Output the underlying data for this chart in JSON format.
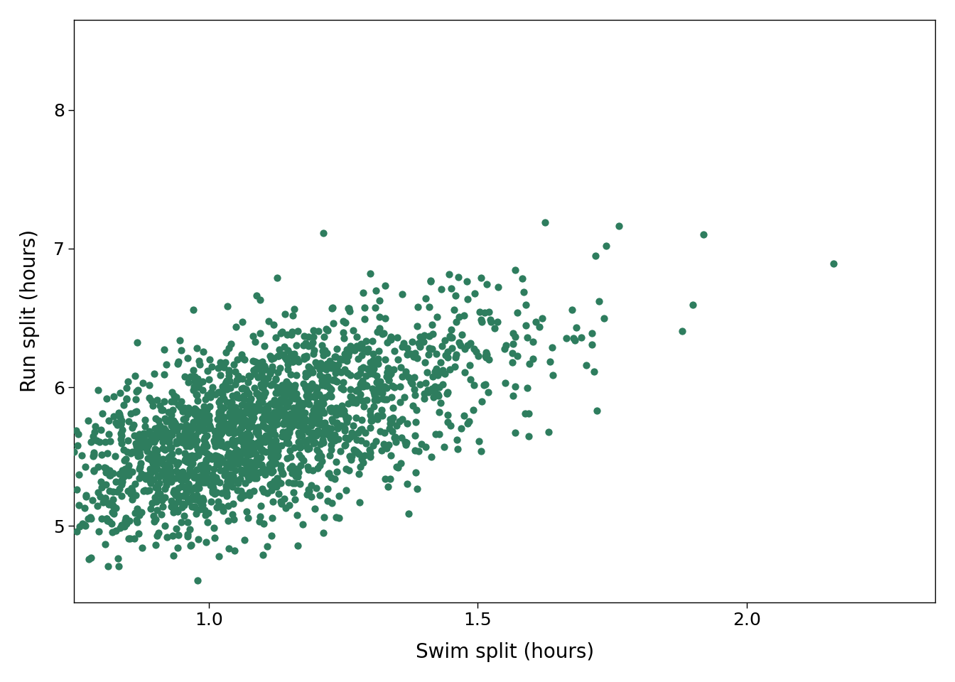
{
  "xlabel": "Swim split (hours)",
  "ylabel": "Run split (hours)",
  "dot_color": "#2E7D5E",
  "background_color": "#ffffff",
  "xlim": [
    0.75,
    2.35
  ],
  "ylim": [
    4.45,
    8.65
  ],
  "xticks": [
    1.0,
    1.5,
    2.0
  ],
  "yticks": [
    5,
    6,
    7,
    8
  ],
  "xlabel_fontsize": 20,
  "ylabel_fontsize": 20,
  "tick_fontsize": 18,
  "dot_size": 55,
  "seed": 42,
  "n_points": 2000
}
